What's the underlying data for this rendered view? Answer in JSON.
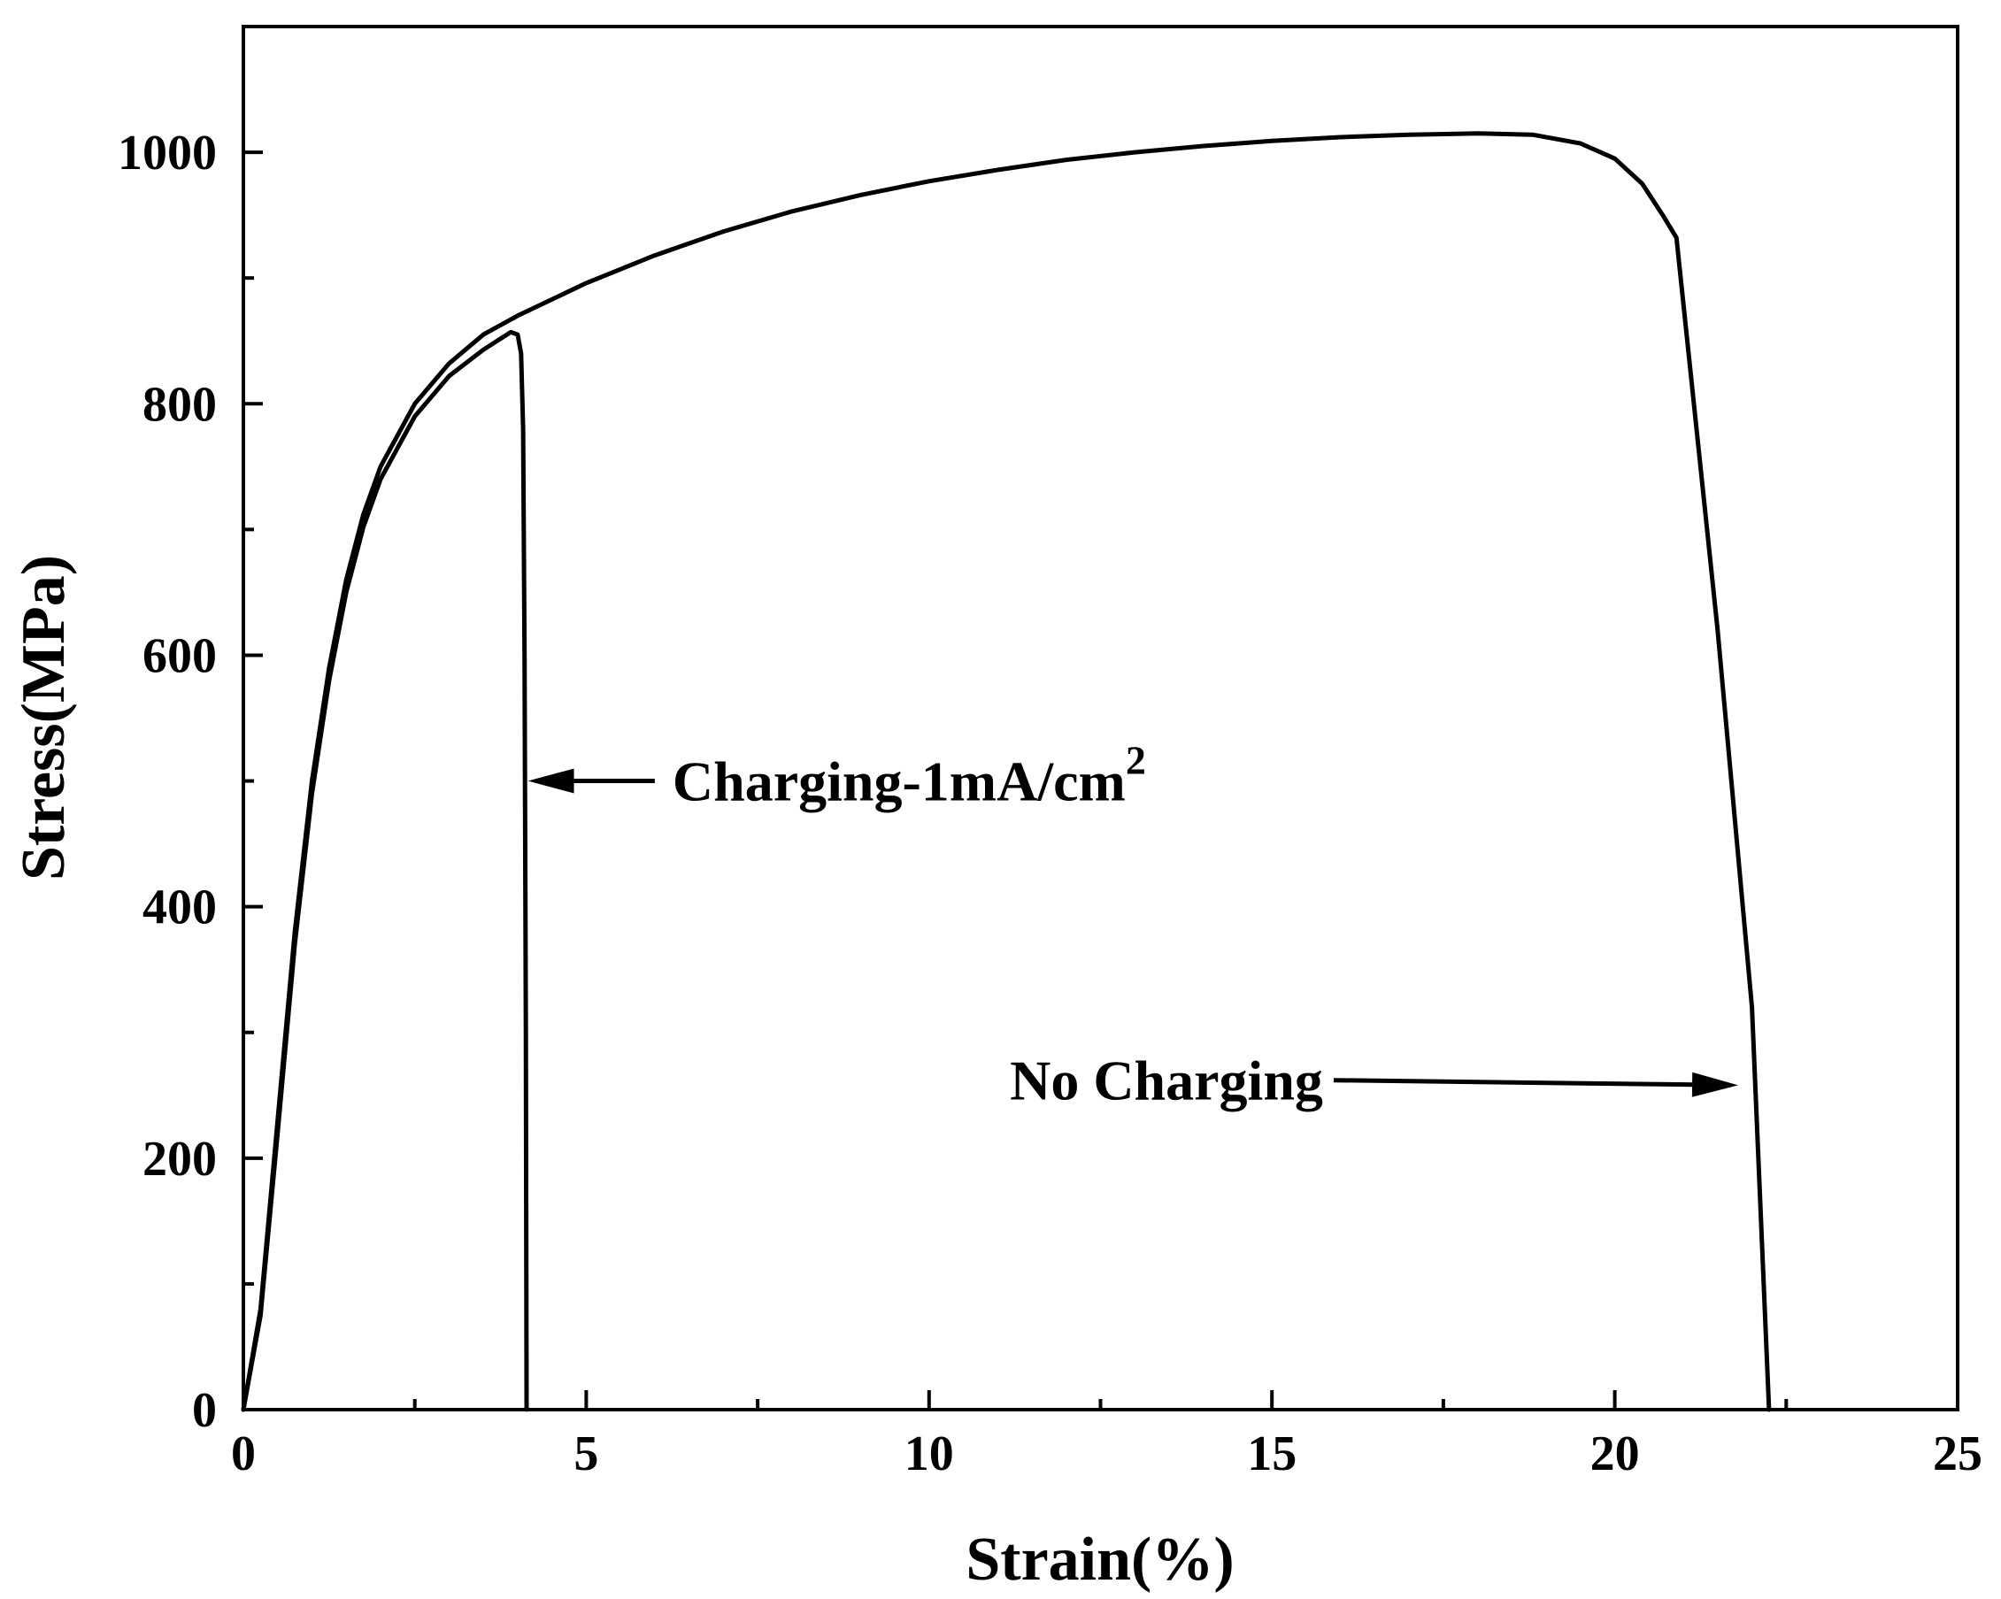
{
  "chart_data": {
    "type": "line",
    "title": "",
    "xlabel": "Strain(%)",
    "ylabel": "Stress(MPa)",
    "xlim": [
      0,
      25
    ],
    "ylim": [
      0,
      1100
    ],
    "xticks": [
      0,
      5,
      10,
      15,
      20,
      25
    ],
    "yticks": [
      0,
      200,
      400,
      600,
      800,
      1000
    ],
    "x_minor_step": 2.5,
    "y_minor_step": 100,
    "grid": false,
    "legend": "none",
    "line_color": "#000000",
    "series": [
      {
        "label_text": "No Charging",
        "points": [
          [
            0,
            0
          ],
          [
            0.25,
            80
          ],
          [
            0.5,
            230
          ],
          [
            0.75,
            380
          ],
          [
            1.0,
            500
          ],
          [
            1.25,
            590
          ],
          [
            1.5,
            660
          ],
          [
            1.75,
            712
          ],
          [
            2.0,
            750
          ],
          [
            2.5,
            800
          ],
          [
            3.0,
            832
          ],
          [
            3.5,
            855
          ],
          [
            4.0,
            870
          ],
          [
            5.0,
            896
          ],
          [
            6.0,
            918
          ],
          [
            7.0,
            937
          ],
          [
            8.0,
            953
          ],
          [
            9.0,
            966
          ],
          [
            10.0,
            977
          ],
          [
            11.0,
            986
          ],
          [
            12.0,
            994
          ],
          [
            13.0,
            1000
          ],
          [
            14.0,
            1005
          ],
          [
            15.0,
            1009
          ],
          [
            16.0,
            1012
          ],
          [
            17.0,
            1014
          ],
          [
            18.0,
            1015
          ],
          [
            18.8,
            1014
          ],
          [
            19.5,
            1007
          ],
          [
            20.0,
            995
          ],
          [
            20.4,
            975
          ],
          [
            20.7,
            950
          ],
          [
            20.9,
            932
          ],
          [
            21.5,
            620
          ],
          [
            22.0,
            320
          ],
          [
            22.25,
            0
          ]
        ]
      },
      {
        "label_text": "Charging-1mA/cm",
        "label_superscript": "2",
        "points": [
          [
            0,
            0
          ],
          [
            0.25,
            75
          ],
          [
            0.5,
            220
          ],
          [
            0.75,
            370
          ],
          [
            1.0,
            490
          ],
          [
            1.25,
            580
          ],
          [
            1.5,
            650
          ],
          [
            1.75,
            702
          ],
          [
            2.0,
            740
          ],
          [
            2.5,
            790
          ],
          [
            3.0,
            822
          ],
          [
            3.5,
            843
          ],
          [
            3.9,
            857
          ],
          [
            4.0,
            855
          ],
          [
            4.05,
            840
          ],
          [
            4.08,
            780
          ],
          [
            4.1,
            600
          ],
          [
            4.12,
            300
          ],
          [
            4.13,
            0
          ]
        ]
      }
    ],
    "annotations": [
      {
        "series_index": 1,
        "arrow_to": [
          4.15,
          500
        ],
        "text_anchor": [
          6.0,
          500
        ]
      },
      {
        "series_index": 0,
        "arrow_to": [
          21.8,
          258
        ],
        "text_anchor": [
          15.9,
          262
        ]
      }
    ]
  }
}
